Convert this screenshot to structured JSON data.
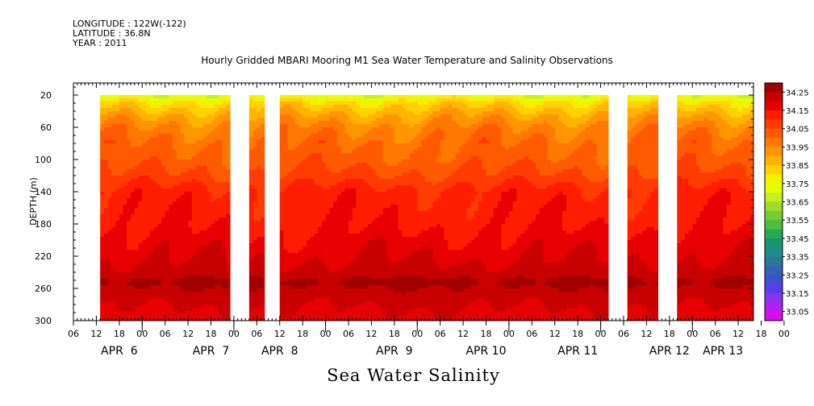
{
  "header": {
    "longitude": "LONGITUDE : 122W(-122)",
    "latitude": "LATITUDE : 36.8N",
    "year": "YEAR : 2011"
  },
  "chart_data": {
    "type": "heatmap",
    "title": "Hourly Gridded MBARI Mooring M1 Sea Water Temperature and Salinity Observations",
    "xlabel": "Sea Water Salinity",
    "ylabel": "DEPTH (m)",
    "ylim": [
      300,
      5
    ],
    "yticks": [
      "20",
      "60",
      "100",
      "140",
      "180",
      "220",
      "260",
      "300"
    ],
    "ytick_values": [
      20,
      60,
      100,
      140,
      180,
      220,
      260,
      300
    ],
    "x_hour_labels": [
      "06",
      "12",
      "18",
      "00",
      "06",
      "12",
      "18",
      "00",
      "06",
      "12",
      "18",
      "00",
      "06",
      "12",
      "18",
      "00",
      "06",
      "12",
      "18",
      "00",
      "06",
      "12",
      "18",
      "00",
      "06",
      "12",
      "18",
      "00",
      "06",
      "12",
      "18",
      "00"
    ],
    "x_hour_start_offset": 6,
    "x_day_labels": [
      "APR  6",
      "APR  7",
      "APR  8",
      "APR  9",
      "APR 10",
      "APR 11",
      "APR 12",
      "APR 13"
    ],
    "x_day_label_hours": [
      12,
      36,
      54,
      84,
      108,
      132,
      156,
      170
    ],
    "x_range_hours": [
      0,
      178
    ],
    "data_gaps_hours": [
      [
        0,
        7
      ],
      [
        41,
        46
      ],
      [
        50,
        54
      ],
      [
        140,
        145
      ],
      [
        153,
        158
      ]
    ],
    "colorbar": {
      "labels": [
        "34.25",
        "34.15",
        "34.05",
        "33.95",
        "33.85",
        "33.75",
        "33.65",
        "33.55",
        "33.45",
        "33.35",
        "33.25",
        "33.15",
        "33.05"
      ],
      "values": [
        34.3,
        34.25,
        34.2,
        34.15,
        34.1,
        34.05,
        34.0,
        33.95,
        33.9,
        33.85,
        33.8,
        33.75,
        33.7,
        33.65,
        33.6,
        33.55,
        33.5,
        33.45,
        33.4,
        33.35,
        33.3,
        33.25,
        33.2,
        33.15,
        33.1,
        33.05
      ],
      "colors": [
        "#a00000",
        "#c80000",
        "#e60000",
        "#ff1e00",
        "#ff3c00",
        "#ff5a00",
        "#ff7800",
        "#ff9600",
        "#ffb400",
        "#ffd200",
        "#f5f000",
        "#e6ff00",
        "#c8f01e",
        "#a0dc28",
        "#78cc32",
        "#50be3c",
        "#28aa50",
        "#16966e",
        "#1e8c8c",
        "#287896",
        "#3264b4",
        "#3c50d2",
        "#5a3cf0",
        "#8c32f5",
        "#b41ef0",
        "#dc0af0"
      ]
    },
    "depth_profile": [
      {
        "depth": 20,
        "value": 33.72
      },
      {
        "depth": 30,
        "value": 33.82
      },
      {
        "depth": 45,
        "value": 33.9
      },
      {
        "depth": 60,
        "value": 33.96
      },
      {
        "depth": 80,
        "value": 34.0
      },
      {
        "depth": 100,
        "value": 34.02
      },
      {
        "depth": 120,
        "value": 34.06
      },
      {
        "depth": 140,
        "value": 34.12
      },
      {
        "depth": 180,
        "value": 34.14
      },
      {
        "depth": 210,
        "value": 34.18
      },
      {
        "depth": 240,
        "value": 34.22
      },
      {
        "depth": 252,
        "value": 34.27
      },
      {
        "depth": 265,
        "value": 34.23
      },
      {
        "depth": 285,
        "value": 34.2
      },
      {
        "depth": 300,
        "value": 34.18
      }
    ]
  }
}
